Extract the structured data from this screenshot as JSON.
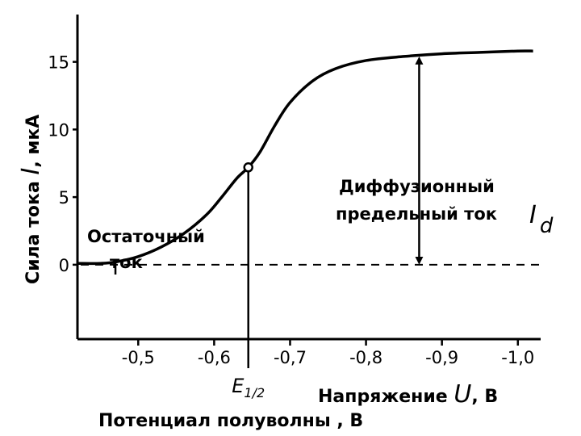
{
  "chart_data": {
    "type": "line",
    "title": "",
    "xlabel": "Напряжение U, В",
    "xlabel_parts": {
      "text": "Напряжение ",
      "var": "U",
      "unit": ", В"
    },
    "ylabel": "Сила тока I, мкА",
    "ylabel_parts": {
      "text": "Сила тока ",
      "var": "I",
      "unit": ", мкА"
    },
    "xlim": [
      -0.42,
      -1.03
    ],
    "ylim": [
      -5.5,
      18.5
    ],
    "x_ticks": [
      -0.5,
      -0.6,
      -0.7,
      -0.8,
      -0.9,
      -1.0
    ],
    "x_tick_labels": [
      "-0,5",
      "-0,6",
      "-0,7",
      "-0,8",
      "-0,9",
      "-1,0"
    ],
    "y_ticks": [
      0,
      5,
      10,
      15
    ],
    "y_tick_labels": [
      "0",
      "5",
      "10",
      "15"
    ],
    "grid": false,
    "series": [
      {
        "x": [
          -0.42,
          -0.45,
          -0.47,
          -0.5,
          -0.53,
          -0.56,
          -0.59,
          -0.61,
          -0.63,
          -0.645,
          -0.66,
          -0.68,
          -0.7,
          -0.73,
          -0.76,
          -0.8,
          -0.85,
          -0.9,
          -0.95,
          -1.0,
          -1.02
        ],
        "y": [
          0.1,
          0.1,
          0.2,
          0.6,
          1.3,
          2.3,
          3.7,
          5.0,
          6.4,
          7.2,
          8.3,
          10.3,
          12.0,
          13.6,
          14.5,
          15.1,
          15.4,
          15.6,
          15.7,
          15.8,
          15.8
        ]
      }
    ],
    "baseline": {
      "y": 0,
      "style": "dashed"
    },
    "half_wave": {
      "x": -0.645,
      "y": 7.2,
      "label_main": "E",
      "label_sub": "1/2",
      "caption": "Потенциал полуволны , В"
    },
    "residual_current": {
      "x": -0.47,
      "label_lines": [
        "Остаточный",
        "ток"
      ]
    },
    "diffusion_current": {
      "x": -0.87,
      "y_top": 15.4,
      "y_bottom": 0,
      "label_lines": [
        "Диффузионный",
        "предельный ток"
      ],
      "label_var": "I",
      "label_sub": "d"
    }
  }
}
